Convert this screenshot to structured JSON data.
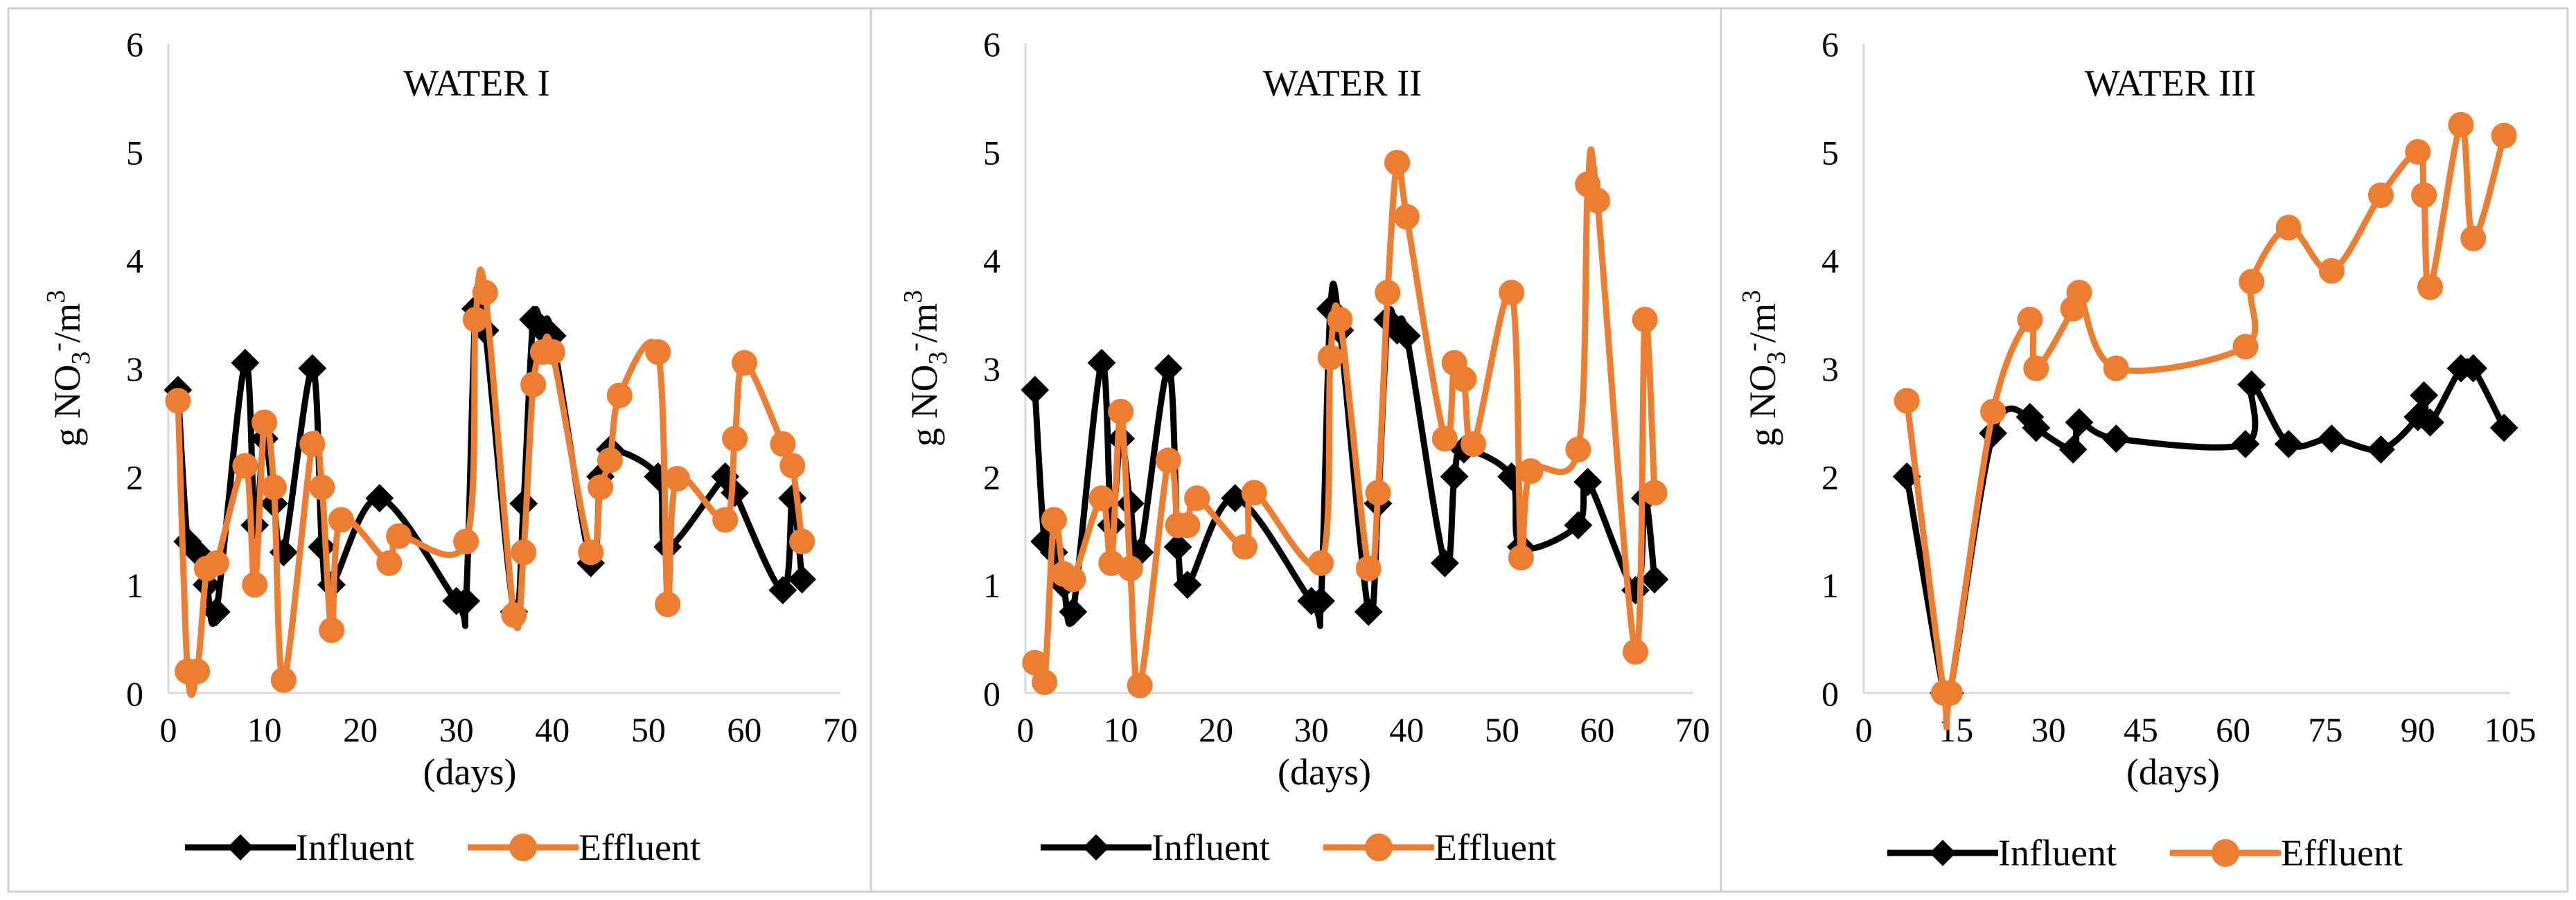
{
  "chart_data": [
    {
      "type": "line",
      "title": "WATER I",
      "xlabel": "(days)",
      "ylabel": "g NO3-/m3",
      "xlim": [
        0,
        70
      ],
      "ylim": [
        0,
        6
      ],
      "xticks": [
        0,
        10,
        20,
        30,
        40,
        50,
        60,
        70
      ],
      "yticks": [
        0,
        1,
        2,
        3,
        4,
        5,
        6
      ],
      "legend": "bottom",
      "series": [
        {
          "name": "Influent",
          "color": "#000000",
          "marker": "diamond",
          "x": [
            1,
            2,
            3,
            4,
            5,
            8,
            9,
            10,
            11,
            12,
            15,
            16,
            17,
            22,
            30,
            31,
            32,
            33,
            36,
            37,
            38,
            39,
            40,
            44,
            45,
            46,
            51,
            52,
            58,
            59,
            64,
            65,
            66
          ],
          "y": [
            2.8,
            1.4,
            1.3,
            1.0,
            0.75,
            3.05,
            1.55,
            2.35,
            1.75,
            1.3,
            3.0,
            1.35,
            1.0,
            1.8,
            0.85,
            0.85,
            3.55,
            3.35,
            0.75,
            1.75,
            3.45,
            3.35,
            3.3,
            1.2,
            2.0,
            2.25,
            2.0,
            1.35,
            2.0,
            1.85,
            0.95,
            1.8,
            1.05
          ]
        },
        {
          "name": "Effluent",
          "color": "#ED7D31",
          "marker": "circle",
          "x": [
            1,
            2,
            3,
            4,
            5,
            8,
            9,
            10,
            11,
            12,
            15,
            16,
            17,
            18,
            23,
            24,
            31,
            32,
            33,
            36,
            37,
            38,
            39,
            40,
            44,
            45,
            46,
            47,
            51,
            52,
            53,
            58,
            59,
            60,
            64,
            65,
            66
          ],
          "y": [
            2.7,
            0.2,
            0.2,
            1.15,
            1.2,
            2.1,
            1.0,
            2.5,
            1.9,
            0.12,
            2.3,
            1.9,
            0.58,
            1.6,
            1.2,
            1.45,
            1.4,
            3.45,
            3.7,
            0.72,
            1.3,
            2.85,
            3.15,
            3.15,
            1.3,
            1.9,
            2.15,
            2.75,
            3.15,
            0.82,
            1.98,
            1.6,
            2.35,
            3.05,
            2.3,
            2.1,
            1.4
          ]
        }
      ]
    },
    {
      "type": "line",
      "title": "WATER II",
      "xlabel": "(days)",
      "ylabel": "g NO3-/m3",
      "xlim": [
        0,
        70
      ],
      "ylim": [
        0,
        6
      ],
      "xticks": [
        0,
        10,
        20,
        30,
        40,
        50,
        60,
        70
      ],
      "yticks": [
        0,
        1,
        2,
        3,
        4,
        5,
        6
      ],
      "legend": "bottom",
      "series": [
        {
          "name": "Influent",
          "color": "#000000",
          "marker": "diamond",
          "x": [
            1,
            2,
            3,
            4,
            5,
            8,
            9,
            10,
            11,
            12,
            15,
            16,
            17,
            22,
            30,
            31,
            32,
            33,
            36,
            37,
            38,
            39,
            40,
            44,
            45,
            46,
            51,
            52,
            58,
            59,
            64,
            65,
            66
          ],
          "y": [
            2.8,
            1.4,
            1.3,
            1.0,
            0.75,
            3.05,
            1.55,
            2.35,
            1.75,
            1.3,
            3.0,
            1.35,
            1.0,
            1.8,
            0.85,
            0.85,
            3.55,
            3.35,
            0.75,
            1.75,
            3.45,
            3.35,
            3.3,
            1.2,
            2.0,
            2.25,
            2.0,
            1.35,
            1.55,
            1.95,
            0.95,
            1.8,
            1.05
          ]
        },
        {
          "name": "Effluent",
          "color": "#ED7D31",
          "marker": "circle",
          "x": [
            1,
            2,
            3,
            4,
            5,
            8,
            9,
            10,
            11,
            12,
            15,
            16,
            17,
            18,
            23,
            24,
            31,
            32,
            33,
            36,
            37,
            38,
            39,
            40,
            44,
            45,
            46,
            47,
            51,
            52,
            53,
            58,
            59,
            60,
            64,
            65,
            66
          ],
          "y": [
            0.28,
            0.1,
            1.6,
            1.1,
            1.05,
            1.8,
            1.2,
            2.6,
            1.15,
            0.07,
            2.15,
            1.55,
            1.55,
            1.8,
            1.35,
            1.85,
            1.2,
            3.1,
            3.45,
            1.15,
            1.85,
            3.7,
            4.9,
            4.4,
            2.35,
            3.05,
            2.9,
            2.3,
            3.7,
            1.25,
            2.05,
            2.25,
            4.7,
            4.55,
            0.38,
            3.45,
            1.85
          ]
        }
      ]
    },
    {
      "type": "line",
      "title": "WATER III",
      "xlabel": "(days)",
      "ylabel": "g NO3-/m3",
      "xlim": [
        0,
        105
      ],
      "ylim": [
        0,
        6
      ],
      "xticks": [
        0,
        15,
        30,
        45,
        60,
        75,
        90,
        105
      ],
      "yticks": [
        0,
        1,
        2,
        3,
        4,
        5,
        6
      ],
      "legend": "bottom",
      "series": [
        {
          "name": "Influent",
          "color": "#000000",
          "marker": "diamond",
          "x": [
            7,
            13,
            14,
            21,
            27,
            28,
            34,
            35,
            41,
            62,
            63,
            69,
            76,
            84,
            90,
            91,
            92,
            97,
            99,
            104
          ],
          "y": [
            2.0,
            0.0,
            0.0,
            2.4,
            2.55,
            2.45,
            2.25,
            2.5,
            2.35,
            2.3,
            2.85,
            2.3,
            2.35,
            2.25,
            2.55,
            2.75,
            2.5,
            3.0,
            3.0,
            2.45
          ]
        },
        {
          "name": "Effluent",
          "color": "#ED7D31",
          "marker": "circle",
          "x": [
            7,
            13,
            14,
            21,
            27,
            28,
            34,
            35,
            41,
            62,
            63,
            69,
            76,
            84,
            90,
            91,
            92,
            97,
            99,
            104
          ],
          "y": [
            2.7,
            0.0,
            0.0,
            2.6,
            3.45,
            3.0,
            3.55,
            3.7,
            3.0,
            3.2,
            3.8,
            4.3,
            3.9,
            4.6,
            5.0,
            4.6,
            3.75,
            5.25,
            4.2,
            5.15
          ]
        }
      ]
    }
  ]
}
